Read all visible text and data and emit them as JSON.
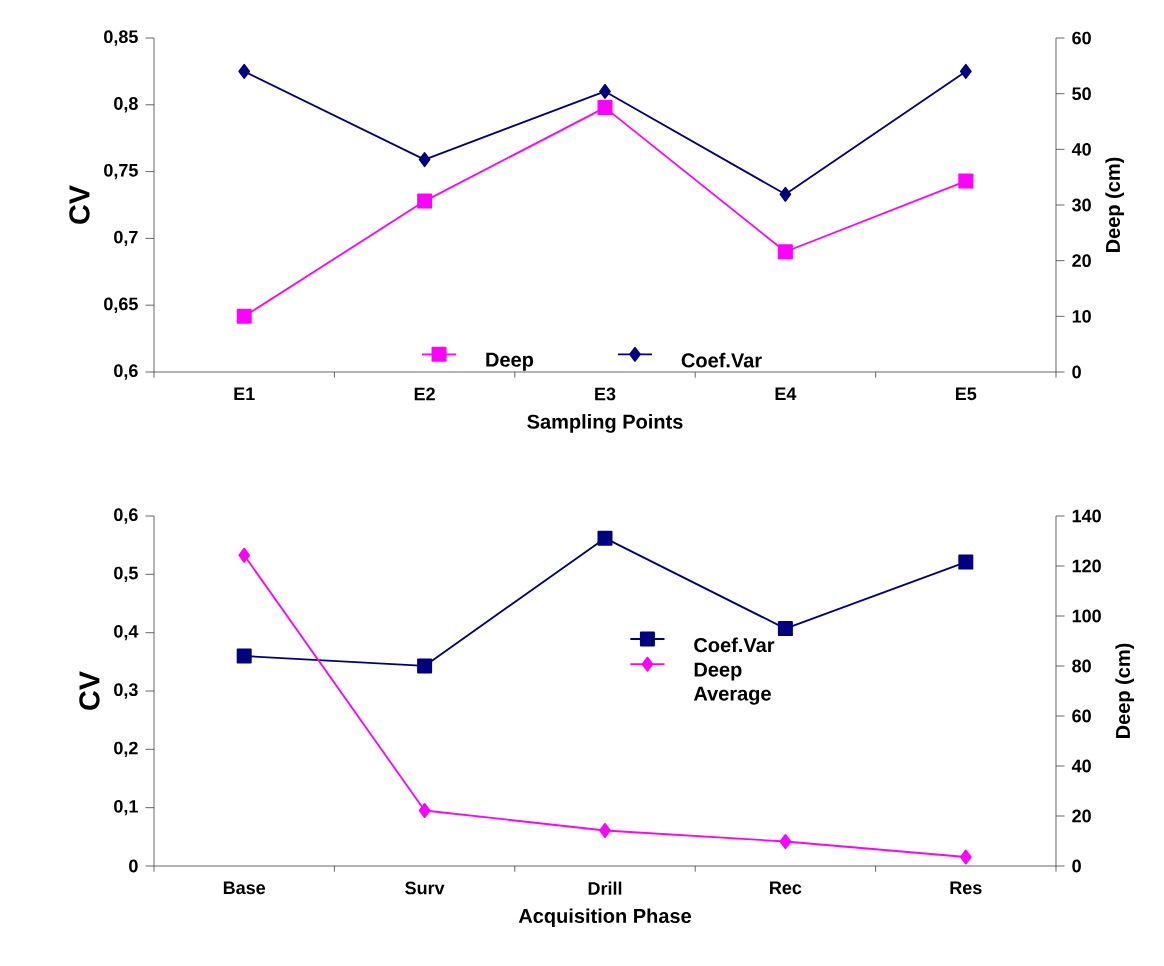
{
  "chart_data": [
    {
      "type": "line",
      "categories": [
        "E1",
        "E2",
        "E3",
        "E4",
        "E5"
      ],
      "xlabel": "Sampling Points",
      "ylabel": "CV",
      "y2label": "Deep (cm)",
      "ylim": [
        0.6,
        0.85
      ],
      "yticks": [
        {
          "value": 0.6,
          "label": "0,6"
        },
        {
          "value": 0.65,
          "label": "0,65"
        },
        {
          "value": 0.7,
          "label": "0,7"
        },
        {
          "value": 0.75,
          "label": "0,75"
        },
        {
          "value": 0.8,
          "label": "0,8"
        },
        {
          "value": 0.85,
          "label": "0,85"
        }
      ],
      "y2lim": [
        0,
        60
      ],
      "y2ticks": [
        0,
        10,
        20,
        30,
        40,
        50,
        60
      ],
      "legend": "bottom",
      "series": [
        {
          "name": "Deep",
          "color": "#ff00ff",
          "axis": "y2",
          "marker": "square",
          "values": [
            10,
            30.7,
            47.5,
            21.6,
            34.3
          ]
        },
        {
          "name": "Coef.Var",
          "color": "#000080",
          "axis": "y",
          "marker": "diamond",
          "values": [
            0.825,
            0.759,
            0.81,
            0.733,
            0.825
          ]
        }
      ]
    },
    {
      "type": "line",
      "categories": [
        "Base",
        "Surv",
        "Drill",
        "Rec",
        "Res"
      ],
      "xlabel": "Acquisition Phase",
      "ylabel": "CV",
      "y2label": "Deep (cm)",
      "ylim": [
        0,
        0.6
      ],
      "yticks": [
        0,
        {
          "value": 0.1,
          "label": "0,1"
        },
        {
          "value": 0.2,
          "label": "0,2"
        },
        {
          "value": 0.3,
          "label": "0,3"
        },
        {
          "value": 0.4,
          "label": "0,4"
        },
        {
          "value": 0.5,
          "label": "0,5"
        },
        {
          "value": 0.6,
          "label": "0,6"
        }
      ],
      "y2lim": [
        0,
        140
      ],
      "y2ticks": [
        0,
        20,
        40,
        60,
        80,
        100,
        120,
        140
      ],
      "legend": "right",
      "series": [
        {
          "name": "Coef.Var",
          "color": "#000080",
          "axis": "y",
          "marker": "square",
          "values": [
            0.36,
            0.343,
            0.562,
            0.407,
            0.521
          ]
        },
        {
          "name": "Deep Average",
          "color": "#ff00ff",
          "axis": "y2",
          "marker": "diamond",
          "values": [
            124.3,
            22.2,
            14.2,
            9.8,
            3.6
          ]
        }
      ]
    }
  ]
}
